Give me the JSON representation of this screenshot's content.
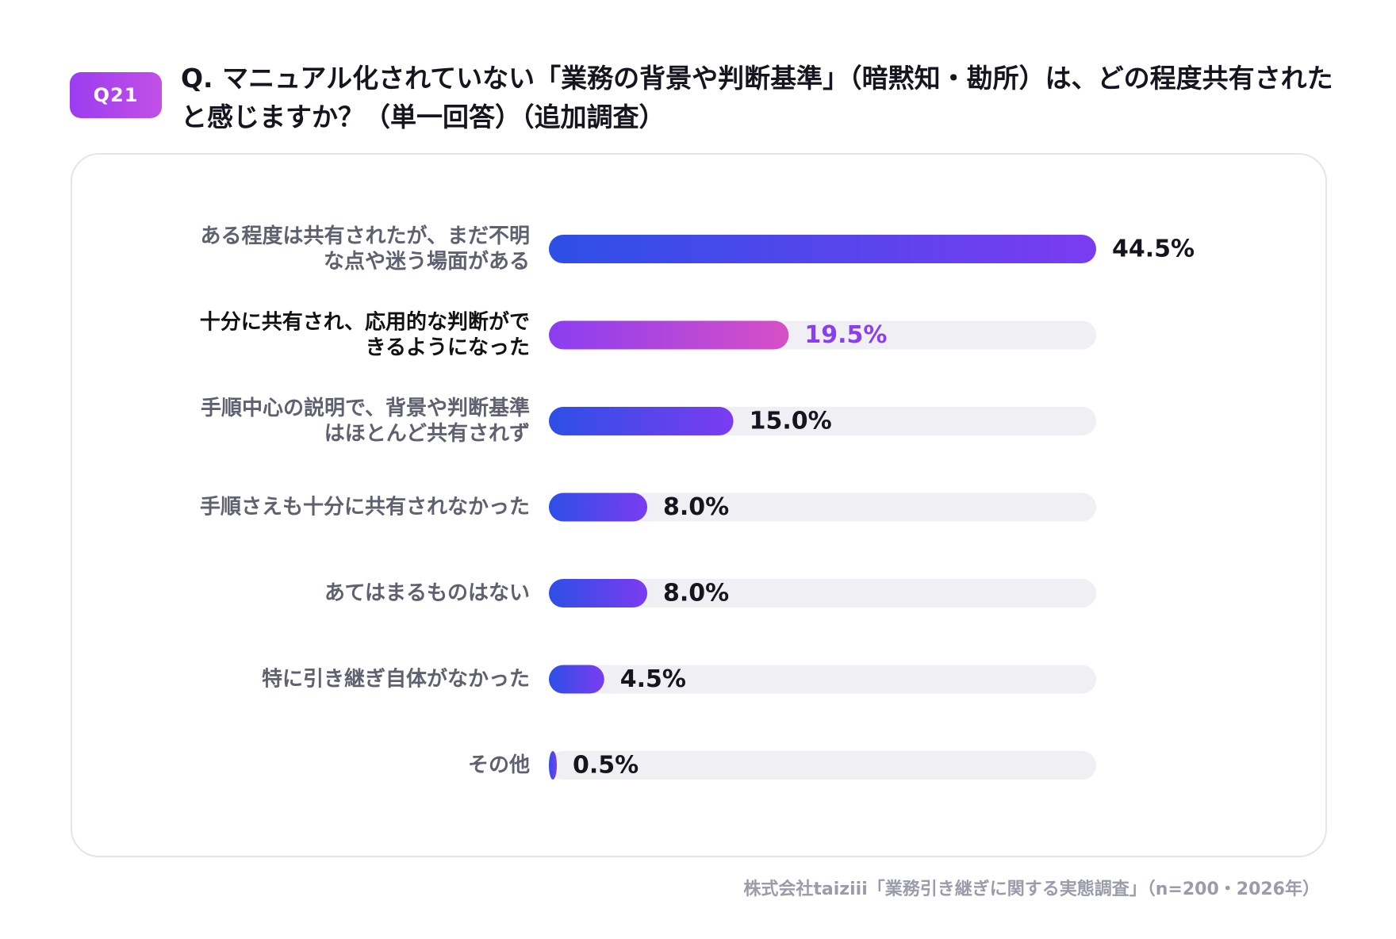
{
  "badge": "Q21",
  "question": "Q. マニュアル化されていない「業務の背景や判断基準」（暗黙知・勘所）は、どの程度共有されたと感じますか？（単一回答）（追加調査）",
  "source": "株式会社taiziii「業務引き継ぎに関する実態調査」（n=200・2026年）",
  "colors": {
    "gradient_blue_start": "#2d4fe6",
    "gradient_blue_end": "#7b3cf0",
    "gradient_highlight_start": "#8a3ef0",
    "gradient_highlight_end": "#d84fc6",
    "track": "#efeff4",
    "label_normal": "#5f6070",
    "label_highlight": "#111111",
    "value_normal": "#15151f",
    "value_highlight": "#8a3ef0"
  },
  "chart_data": {
    "type": "bar",
    "orientation": "horizontal",
    "xlim": [
      0,
      44.5
    ],
    "unit": "%",
    "categories": [
      [
        "ある程度は共有されたが、まだ不明",
        "な点や迷う場面がある"
      ],
      [
        "十分に共有され、応用的な判断がで",
        "きるようになった"
      ],
      [
        "手順中心の説明で、背景や判断基準",
        "はほとんど共有されず"
      ],
      [
        "手順さえも十分に共有されなかった"
      ],
      [
        "あてはまるものはない"
      ],
      [
        "特に引き継ぎ自体がなかった"
      ],
      [
        "その他"
      ]
    ],
    "values": [
      44.5,
      19.5,
      15.0,
      8.0,
      8.0,
      4.5,
      0.5
    ],
    "value_labels": [
      "44.5%",
      "19.5%",
      "15.0%",
      "8.0%",
      "8.0%",
      "4.5%",
      "0.5%"
    ],
    "highlight_index": 1
  }
}
